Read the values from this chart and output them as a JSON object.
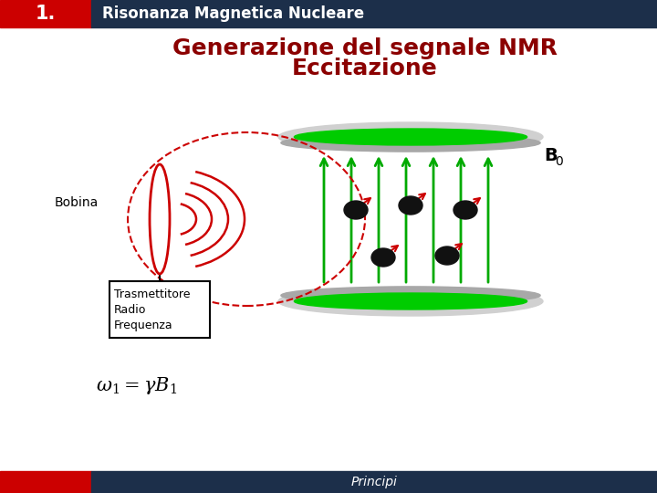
{
  "title_line1": "Generazione del segnale NMR",
  "title_line2": "Eccitazione",
  "title_color": "#8B0000",
  "header_number": "1.",
  "header_text": "Risonanza Magnetica Nucleare",
  "header_red_color": "#CC0000",
  "header_dark_color": "#1C2F4A",
  "footer_text": "Principi",
  "footer_red_color": "#CC0000",
  "footer_dark_color": "#1C2F4A",
  "bg_color": "#FFFFFF",
  "magnet_outer_color": "#D0D0D0",
  "magnet_green": "#00CC00",
  "magnet_rim_color": "#A8A8A8",
  "arrow_green": "#00AA00",
  "spin_color": "#111111",
  "spin_arrow_color": "#CC0000",
  "coil_color": "#CC0000",
  "wave_color": "#CC0000",
  "label_bobina": "Bobina",
  "label_trasmettitore": "Trasmettitore\nRadio\nFrequenza",
  "formula_text": "ω₁ = γB₁"
}
